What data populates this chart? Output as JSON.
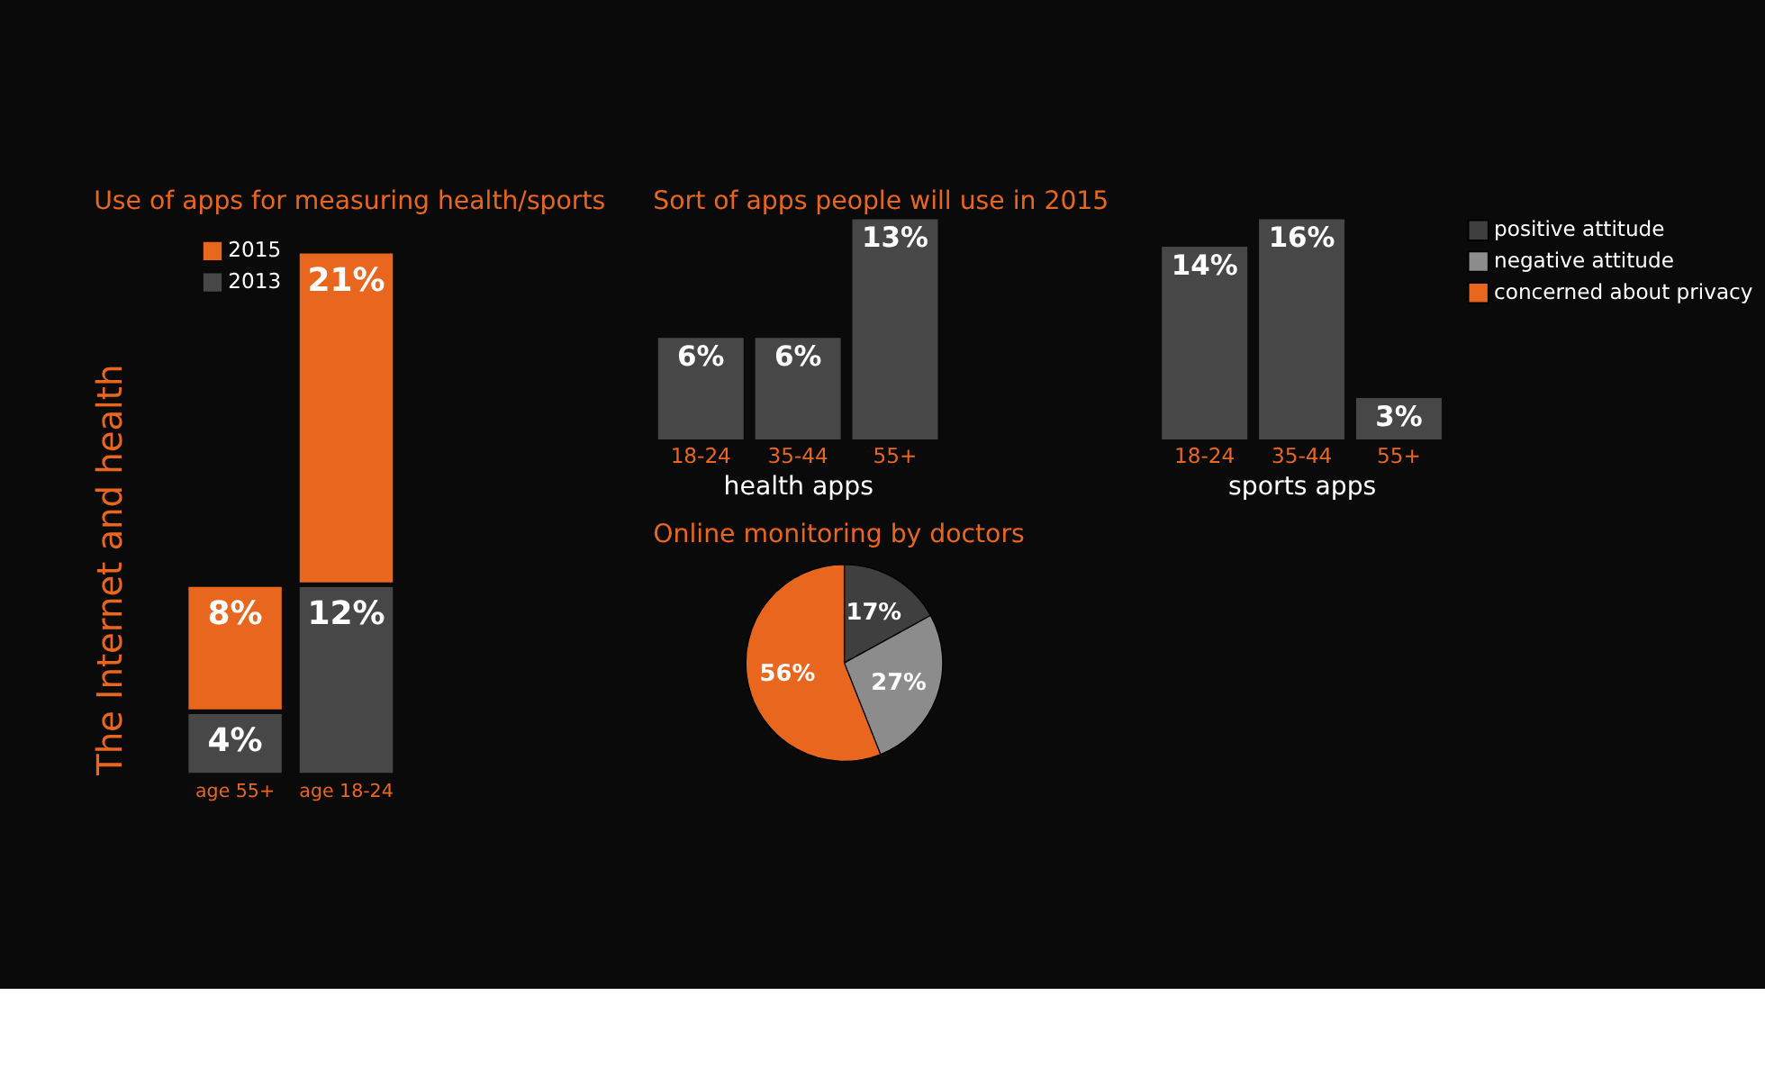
{
  "chart_data": [
    {
      "type": "bar",
      "stacked": true,
      "title": "Use of apps for measuring health/sports",
      "annotations": [
        "The Internet and health"
      ],
      "categories": [
        "age 55+",
        "age 18-24"
      ],
      "legend": "top left",
      "series": [
        {
          "name": "2013",
          "color": "#474747",
          "values": [
            4,
            12
          ],
          "value_labels": [
            "4%",
            "12%"
          ]
        },
        {
          "name": "2015",
          "color": "#e8661e",
          "values": [
            8,
            21
          ],
          "value_labels": [
            "8%",
            "21%"
          ]
        }
      ]
    },
    {
      "type": "bar",
      "title": "Sort of apps people will use in 2015",
      "xlabel": "health apps",
      "categories": [
        "18-24",
        "35-44",
        "55+"
      ],
      "values": [
        6,
        6,
        13
      ],
      "value_labels": [
        "6%",
        "6%",
        "13%"
      ],
      "color": "#474747"
    },
    {
      "type": "bar",
      "xlabel": "sports apps",
      "categories": [
        "18-24",
        "35-44",
        "55+"
      ],
      "values": [
        14,
        16,
        3
      ],
      "value_labels": [
        "14%",
        "16%",
        "3%"
      ],
      "color": "#474747"
    },
    {
      "type": "pie",
      "title": "Online monitoring by doctors",
      "categories": [
        "positive attitude",
        "negative attitude",
        "concerned about privacy"
      ],
      "values": [
        17,
        27,
        56
      ],
      "value_labels": [
        "17%",
        "27%",
        "56%"
      ],
      "colors": [
        "#3f3f3f",
        "#8c8c8c",
        "#e8661e"
      ],
      "legend": "right"
    }
  ]
}
